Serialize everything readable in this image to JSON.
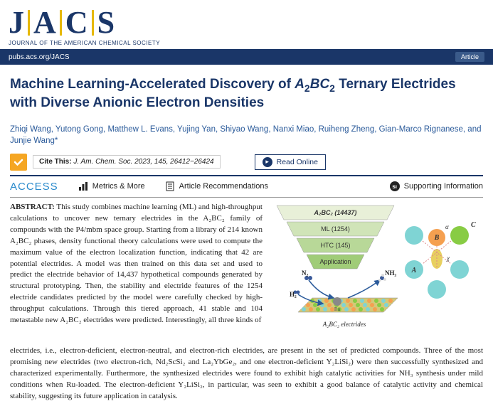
{
  "logo": {
    "letters": [
      "J",
      "A",
      "C",
      "S"
    ],
    "subtitle": "JOURNAL OF THE AMERICAN CHEMICAL SOCIETY"
  },
  "urlbar": {
    "url": "pubs.acs.org/JACS",
    "badge": "Article"
  },
  "title": {
    "html": "Machine Learning-Accelerated Discovery of <span class='ital'>A</span><span class='sub'>2</span><span class='ital'>BC</span><span class='sub'>2</span> Ternary Electrides with Diverse Anionic Electron Densities"
  },
  "authors": "Zhiqi Wang, Yutong Gong, Matthew L. Evans, Yujing Yan, Shiyao Wang, Nanxi Miao, Ruiheng Zheng, Gian-Marco Rignanese, and Junjie Wang*",
  "cite": {
    "label": "Cite This:",
    "ref": "J. Am. Chem. Soc. 2023, 145, 26412−26424"
  },
  "read_online": "Read Online",
  "info": {
    "access": "ACCESS",
    "metrics": "Metrics & More",
    "recs": "Article Recommendations",
    "si": "Supporting Information"
  },
  "abstract": {
    "label": "ABSTRACT:",
    "body_first": "This study combines machine learning (ML) and high-throughput calculations to uncover new ternary electrides in the A₂BC₂ family of compounds with the P4/mbm space group. Starting from a library of 214 known A₂BC₂ phases, density functional theory calculations were used to compute the maximum value of the electron localization function, indicating that 42 are potential electrides. A model was then trained on this data set and used to predict the electride behavior of 14,437 hypothetical compounds generated by structural prototyping. Then, the stability and electride features of the 1254 electride candidates predicted by the model were carefully checked by high-throughput calculations. Through this tiered approach, 41 stable and 104 metastable new A₂BC₂ electrides were predicted. Interestingly, all three kinds of",
    "body_full": "electrides, i.e., electron-deficient, electron-neutral, and electron-rich electrides, are present in the set of predicted compounds. Three of the most promising new electrides (two electron-rich, Nd₂ScSi₂ and La₂YbGe₂, and one electron-deficient Y₂LiSi₂) were then successfully synthesized and characterized experimentally. Furthermore, the synthesized electrides were found to exhibit high catalytic activities for NH₃ synthesis under mild conditions when Ru-loaded. The electron-deficient Y₂LiSi₂, in particular, was seen to exhibit a good balance of catalytic activity and chemical stability, suggesting its future application in catalysis."
  },
  "figure": {
    "funnel": {
      "layers": [
        {
          "label": "A₂BC₂ (14437)",
          "fill": "#e8f0d8",
          "y": 5
        },
        {
          "label": "ML (1254)",
          "fill": "#d0e4b8",
          "y": 28
        },
        {
          "label": "HTC (145)",
          "fill": "#b8d898",
          "y": 51
        },
        {
          "label": "Application",
          "fill": "#a0cc78",
          "y": 74
        }
      ]
    },
    "arrows": {
      "n2": "N₂",
      "h2": "H₂",
      "nh3": "NH₃"
    },
    "slab_label": "A₂BC₂ electrides",
    "atoms": {
      "A": {
        "color": "#7fd4d4",
        "label": "A"
      },
      "B": {
        "color": "#f5a050",
        "label": "B"
      },
      "C": {
        "color": "#88cc44",
        "label": "C"
      },
      "X": {
        "color": "#e8d060",
        "label": "χ"
      },
      "alpha": "α"
    }
  }
}
